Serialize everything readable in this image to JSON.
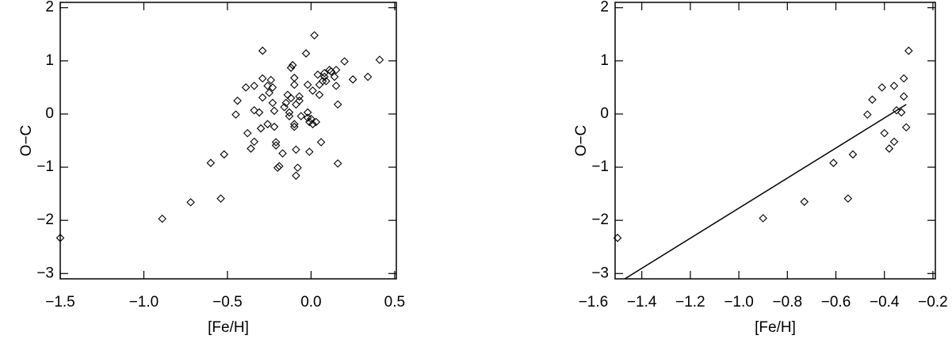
{
  "chart_data": [
    {
      "type": "scatter",
      "x_label": "[Fe/H]",
      "y_label": "O−C",
      "xlim": [
        -1.5,
        0.51
      ],
      "ylim": [
        -3.1,
        2.1
      ],
      "xticks": [
        {
          "value": -1.5,
          "label": "−1.5"
        },
        {
          "value": -1.0,
          "label": "−1.0"
        },
        {
          "value": -0.5,
          "label": "−0.5"
        },
        {
          "value": 0,
          "label": "0.0"
        },
        0.5
      ],
      "yticks": [
        {
          "value": -3,
          "label": "−3"
        },
        {
          "value": -2,
          "label": "−2"
        },
        {
          "value": -1,
          "label": "−1"
        },
        0,
        1,
        2
      ],
      "series": [
        {
          "type": "scatter",
          "marker": "diamond",
          "color": "#000000",
          "x": [
            -1.5,
            -0.89,
            -0.72,
            -0.6,
            -0.54,
            -0.52,
            -0.45,
            -0.44,
            -0.39,
            -0.38,
            -0.36,
            -0.34,
            -0.34,
            -0.34,
            -0.31,
            -0.29,
            -0.29,
            -0.29,
            -0.3,
            -0.26,
            -0.26,
            -0.23,
            -0.25,
            -0.24,
            -0.23,
            -0.22,
            -0.22,
            -0.21,
            -0.2,
            -0.19,
            -0.21,
            -0.17,
            -0.16,
            -0.15,
            -0.14,
            -0.13,
            -0.13,
            -0.12,
            -0.12,
            -0.11,
            -0.1,
            -0.1,
            -0.09,
            -0.1,
            -0.1,
            -0.09,
            -0.07,
            -0.07,
            -0.06,
            -0.09,
            -0.08,
            -0.03,
            -0.02,
            -0.02,
            -0.02,
            -0.01,
            -0.01,
            0.0,
            0.01,
            0.01,
            0.02,
            0.03,
            0.04,
            0.05,
            0.06,
            0.05,
            0.07,
            0.08,
            0.08,
            0.09,
            0.11,
            0.12,
            0.12,
            0.14,
            0.15,
            0.15,
            0.16,
            0.16,
            0.2,
            0.25,
            0.34,
            0.41
          ],
          "y": [
            -2.33,
            -1.97,
            -1.66,
            -0.92,
            -1.59,
            -0.76,
            -0.01,
            0.25,
            0.5,
            -0.36,
            -0.65,
            -0.52,
            0.53,
            0.07,
            0.03,
            1.19,
            0.67,
            0.31,
            -0.27,
            -0.19,
            0.53,
            0.5,
            0.4,
            0.64,
            0.21,
            0.06,
            -0.24,
            -0.53,
            -1.01,
            -0.98,
            -0.59,
            -0.74,
            0.13,
            0.21,
            0.36,
            0.03,
            -0.04,
            0.3,
            0.87,
            0.92,
            -0.19,
            0.55,
            -0.67,
            -0.24,
            0.68,
            0.18,
            0.25,
            0.33,
            -0.04,
            -1.16,
            -1.01,
            1.14,
            0.55,
            0.03,
            -0.07,
            -0.15,
            -0.71,
            -0.09,
            -0.19,
            0.44,
            1.48,
            -0.15,
            0.74,
            0.55,
            -0.53,
            0.36,
            0.62,
            0.7,
            0.77,
            0.62,
            0.83,
            0.8,
            0.8,
            0.7,
            0.83,
            0.53,
            0.18,
            -0.93,
            0.99,
            0.65,
            0.7,
            1.02
          ]
        }
      ]
    },
    {
      "type": "scatter",
      "x_label": "[Fe/H]",
      "y_label": "O−C",
      "xlim": [
        -1.51,
        -0.19
      ],
      "ylim": [
        -3.1,
        2.1
      ],
      "xticks": [
        {
          "value": -1.6,
          "label": "−1.6"
        },
        {
          "value": -1.4,
          "label": "−1.4"
        },
        {
          "value": -1.2,
          "label": "−1.2"
        },
        {
          "value": -1.0,
          "label": "−1.0"
        },
        {
          "value": -0.8,
          "label": "−0.8"
        },
        {
          "value": -0.6,
          "label": "−0.6"
        },
        {
          "value": -0.4,
          "label": "−0.4"
        },
        {
          "value": -0.2,
          "label": "−0.2"
        }
      ],
      "yticks": [
        {
          "value": -3,
          "label": "−3"
        },
        {
          "value": -2,
          "label": "−2"
        },
        {
          "value": -1,
          "label": "−1"
        },
        0,
        1,
        2
      ],
      "series": [
        {
          "type": "scatter",
          "marker": "diamond",
          "color": "#000000",
          "x": [
            -1.5,
            -0.9,
            -0.73,
            -0.61,
            -0.55,
            -0.53,
            -0.47,
            -0.45,
            -0.4,
            -0.41,
            -0.38,
            -0.36,
            -0.36,
            -0.35,
            -0.33,
            -0.32,
            -0.32,
            -0.31,
            -0.3
          ],
          "y": [
            -2.33,
            -1.96,
            -1.65,
            -0.92,
            -1.59,
            -0.76,
            -0.01,
            0.27,
            -0.36,
            0.5,
            -0.65,
            -0.52,
            0.53,
            0.07,
            0.03,
            0.67,
            0.33,
            -0.25,
            1.19
          ]
        },
        {
          "type": "line",
          "color": "#000000",
          "x": [
            -1.47,
            -0.31
          ],
          "y": [
            -3.1,
            0.18
          ]
        }
      ]
    }
  ]
}
